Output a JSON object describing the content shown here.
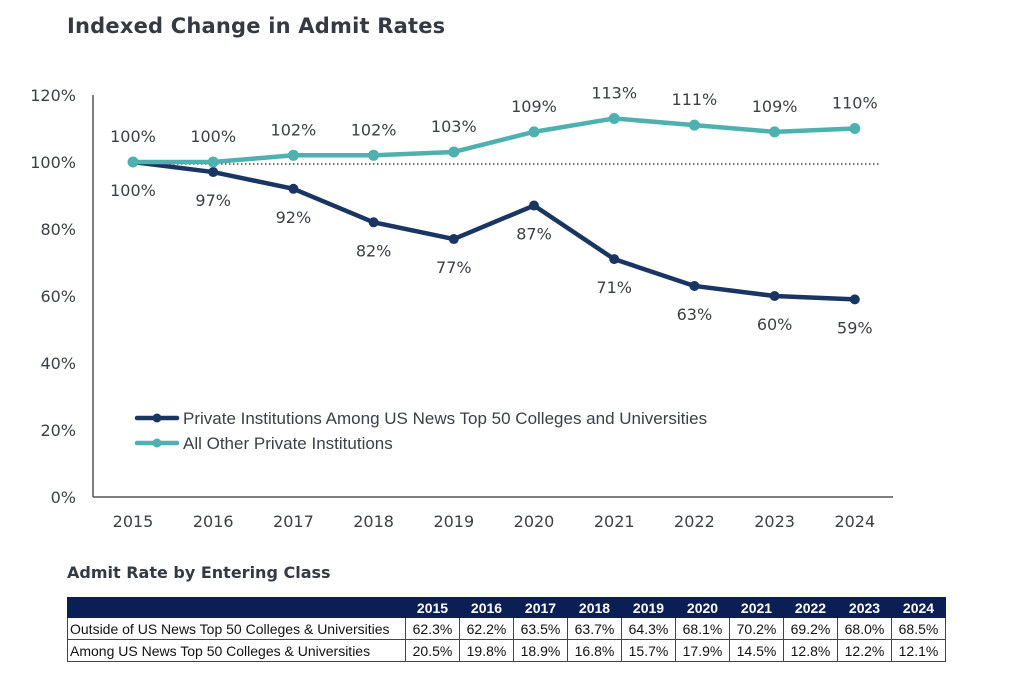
{
  "title": "Indexed Change in Admit Rates",
  "chart_data": {
    "type": "line",
    "title": "Indexed Change in Admit Rates",
    "xlabel": "",
    "ylabel": "",
    "x": [
      "2015",
      "2016",
      "2017",
      "2018",
      "2019",
      "2020",
      "2021",
      "2022",
      "2023",
      "2024"
    ],
    "ylim": [
      0,
      120
    ],
    "yticks": [
      0,
      20,
      40,
      60,
      80,
      100,
      120
    ],
    "ytick_labels": [
      "0%",
      "20%",
      "40%",
      "60%",
      "80%",
      "100%",
      "120%"
    ],
    "reference_line": {
      "y": 100,
      "style": "dotted"
    },
    "legend_position": "lower-left",
    "grid": false,
    "series": [
      {
        "name": "Private Institutions Among US News Top 50 Colleges and Universities",
        "color": "#1b3563",
        "values": [
          100,
          97,
          92,
          82,
          77,
          87,
          71,
          63,
          60,
          59
        ],
        "labels": [
          "100%",
          "97%",
          "92%",
          "82%",
          "77%",
          "87%",
          "71%",
          "63%",
          "60%",
          "59%"
        ],
        "label_position": "below"
      },
      {
        "name": "All Other Private Institutions",
        "color": "#4fb0b0",
        "values": [
          100,
          100,
          102,
          102,
          103,
          109,
          113,
          111,
          109,
          110
        ],
        "labels": [
          "100%",
          "100%",
          "102%",
          "102%",
          "103%",
          "109%",
          "113%",
          "111%",
          "109%",
          "110%"
        ],
        "label_position": "above"
      }
    ]
  },
  "table": {
    "title": "Admit Rate by Entering Class",
    "header_color": "#0c1f55",
    "columns": [
      "2015",
      "2016",
      "2017",
      "2018",
      "2019",
      "2020",
      "2021",
      "2022",
      "2023",
      "2024"
    ],
    "rows": [
      {
        "label": "Outside of US News Top 50 Colleges & Universities",
        "values": [
          "62.3%",
          "62.2%",
          "63.5%",
          "63.7%",
          "64.3%",
          "68.1%",
          "70.2%",
          "69.2%",
          "68.0%",
          "68.5%"
        ]
      },
      {
        "label": "Among US News Top 50 Colleges & Universities",
        "values": [
          "20.5%",
          "19.8%",
          "18.9%",
          "16.8%",
          "15.7%",
          "17.9%",
          "14.5%",
          "12.8%",
          "12.2%",
          "12.1%"
        ]
      }
    ]
  }
}
